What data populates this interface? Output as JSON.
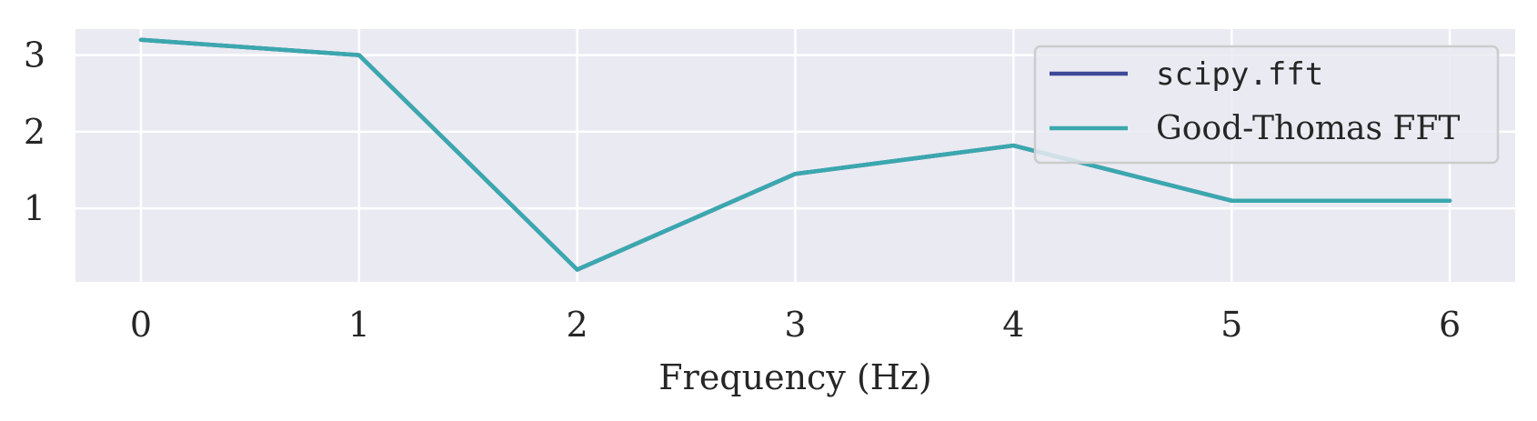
{
  "chart_data": {
    "type": "line",
    "title": "",
    "xlabel": "Frequency (Hz)",
    "ylabel": "",
    "x": [
      0,
      1,
      2,
      3,
      4,
      5,
      6
    ],
    "xlim": [
      -0.3,
      6.3
    ],
    "ylim": [
      0.04,
      3.34
    ],
    "xticks": [
      0,
      1,
      2,
      3,
      4,
      5,
      6
    ],
    "yticks": [
      1,
      2,
      3
    ],
    "grid": true,
    "legend_position": "top-right",
    "series": [
      {
        "name": "scipy.fft",
        "color": "#3e4a97",
        "values": [
          3.2,
          3.0,
          0.2,
          1.45,
          1.82,
          1.1,
          1.1
        ]
      },
      {
        "name": "Good-Thomas FFT",
        "color": "#3aa8ae",
        "values": [
          3.2,
          3.0,
          0.2,
          1.45,
          1.82,
          1.1,
          1.1
        ]
      }
    ],
    "colors": {
      "plot_background": "#eaeaf2",
      "grid": "#ffffff",
      "legend_border": "#cccccc"
    }
  }
}
